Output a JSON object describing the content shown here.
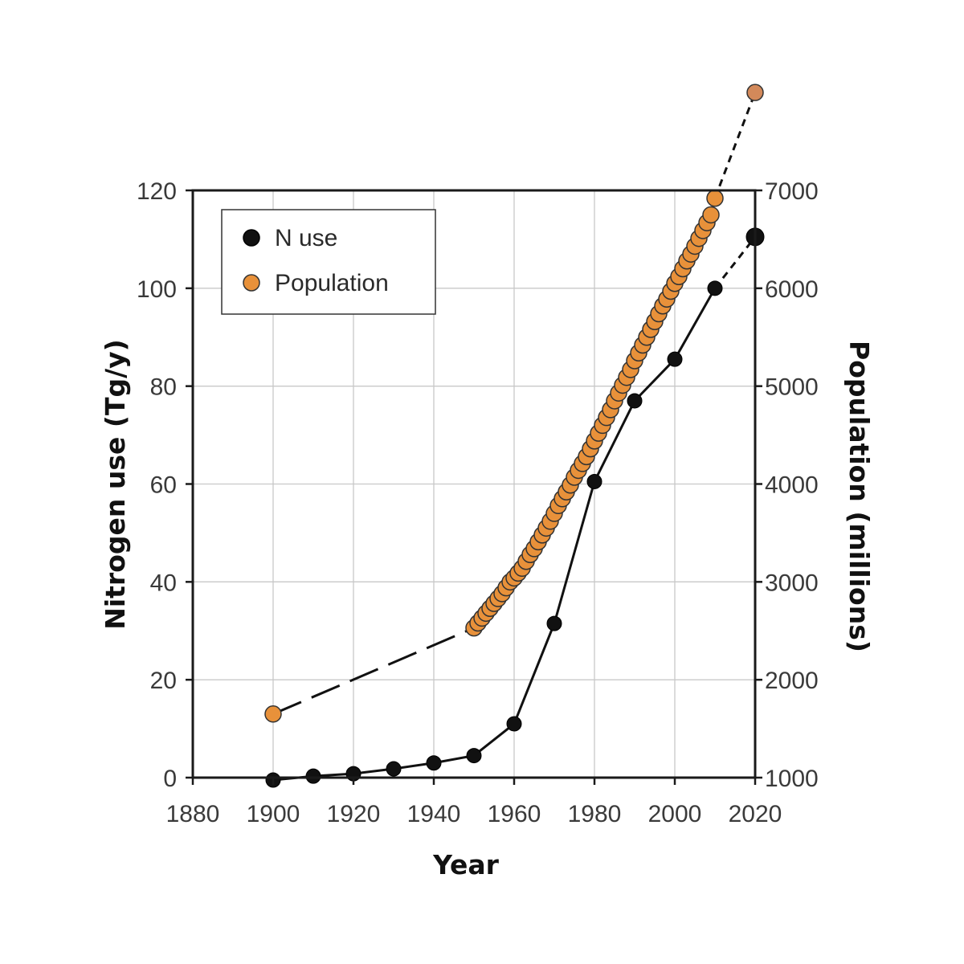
{
  "chart_data": {
    "type": "line",
    "title": "",
    "xlabel": "Year",
    "ylabel_left": "Nitrogen use (Tg/y)",
    "ylabel_right": "Population (millions)",
    "xlim": [
      1880,
      2020
    ],
    "ylim_left": [
      0,
      120
    ],
    "ylim_right": [
      1000,
      7000
    ],
    "x_ticks": [
      1880,
      1900,
      1920,
      1940,
      1960,
      1980,
      2000,
      2020
    ],
    "x_tick_labels": [
      "1880",
      "1900",
      "1920",
      "1940",
      "1960",
      "1980",
      "2000",
      "2020"
    ],
    "y_left_ticks": [
      0,
      20,
      40,
      60,
      80,
      100,
      120
    ],
    "y_left_tick_labels": [
      "0",
      "20",
      "40",
      "60",
      "80",
      "100",
      "120"
    ],
    "y_right_ticks": [
      1000,
      2000,
      3000,
      4000,
      5000,
      6000,
      7000
    ],
    "y_right_tick_labels": [
      "1000",
      "2000",
      "3000",
      "4000",
      "5000",
      "6000",
      "7000"
    ],
    "grid": true,
    "legend": {
      "position": "top-left",
      "entries": [
        {
          "label": "N use",
          "color": "#111111"
        },
        {
          "label": "Population",
          "color": "#e8913a"
        }
      ]
    },
    "series": [
      {
        "name": "N use",
        "axis": "left",
        "color": "#111111",
        "x": [
          1900,
          1910,
          1920,
          1930,
          1940,
          1950,
          1960,
          1970,
          1980,
          1990,
          2000,
          2010
        ],
        "y": [
          -0.5,
          0.3,
          0.8,
          1.8,
          3.0,
          4.5,
          11.0,
          31.5,
          60.5,
          77.0,
          85.5,
          100.0
        ],
        "projection": {
          "x": [
            2010,
            2020
          ],
          "y": [
            100.0,
            110.5
          ]
        }
      },
      {
        "name": "Population",
        "axis": "right",
        "color": "#e8913a",
        "x": [
          1900,
          1950,
          1951,
          1952,
          1953,
          1954,
          1955,
          1956,
          1957,
          1958,
          1959,
          1960,
          1961,
          1962,
          1963,
          1964,
          1965,
          1966,
          1967,
          1968,
          1969,
          1970,
          1971,
          1972,
          1973,
          1974,
          1975,
          1976,
          1977,
          1978,
          1979,
          1980,
          1981,
          1982,
          1983,
          1984,
          1985,
          1986,
          1987,
          1988,
          1989,
          1990,
          1991,
          1992,
          1993,
          1994,
          1995,
          1996,
          1997,
          1998,
          1999,
          2000,
          2001,
          2002,
          2003,
          2004,
          2005,
          2006,
          2007,
          2008,
          2009,
          2010
        ],
        "y": [
          1650,
          2530,
          2580,
          2630,
          2680,
          2730,
          2780,
          2830,
          2880,
          2940,
          3000,
          3040,
          3090,
          3140,
          3210,
          3280,
          3340,
          3410,
          3480,
          3550,
          3620,
          3700,
          3780,
          3850,
          3920,
          3990,
          4070,
          4140,
          4210,
          4280,
          4360,
          4440,
          4520,
          4600,
          4680,
          4760,
          4850,
          4930,
          5010,
          5090,
          5170,
          5260,
          5340,
          5420,
          5500,
          5580,
          5660,
          5740,
          5820,
          5890,
          5970,
          6050,
          6120,
          6200,
          6280,
          6350,
          6430,
          6510,
          6590,
          6670,
          6750,
          6920
        ],
        "projection": {
          "x": [
            2010,
            2020
          ],
          "y": [
            6920,
            8000
          ]
        }
      }
    ]
  }
}
